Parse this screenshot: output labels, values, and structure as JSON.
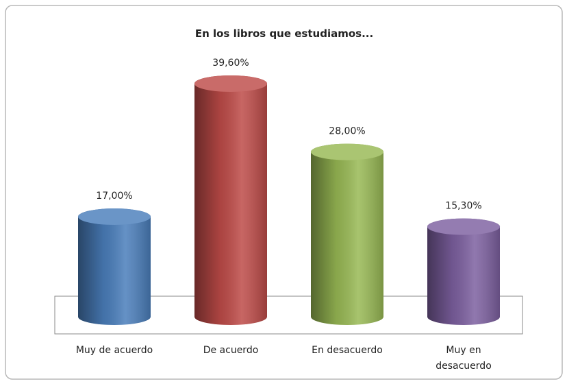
{
  "chart_data": {
    "type": "bar",
    "title": "En los libros que estudiamos...",
    "categories": [
      "Muy de acuerdo",
      "De acuerdo",
      "En desacuerdo",
      "Muy en desacuerdo"
    ],
    "values": [
      17,
      39.6,
      28,
      15.3
    ],
    "value_labels": [
      "17,00%",
      "39,60%",
      "28,00%",
      "15,30%"
    ],
    "colors": [
      "#4a7ebb",
      "#be4b48",
      "#98b954",
      "#7d60a0"
    ]
  }
}
